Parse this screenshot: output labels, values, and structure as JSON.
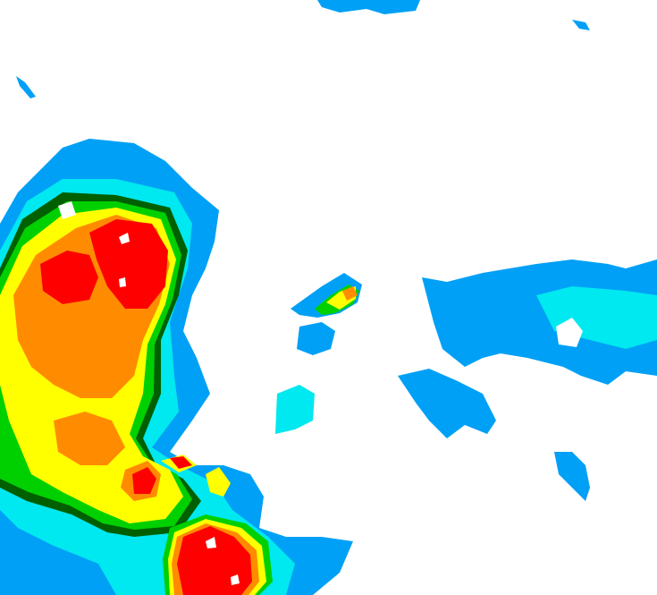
{
  "map": {
    "type": "weather-radar-reflectivity",
    "background": "#ffffff",
    "palette": {
      "light_blue": "#00a0f6",
      "cyan": "#00e8f0",
      "green": "#00d000",
      "dark_green": "#006000",
      "yellow": "#ffff00",
      "orange": "#ff8c00",
      "red": "#ff0000",
      "white_core": "#ffffff"
    }
  }
}
